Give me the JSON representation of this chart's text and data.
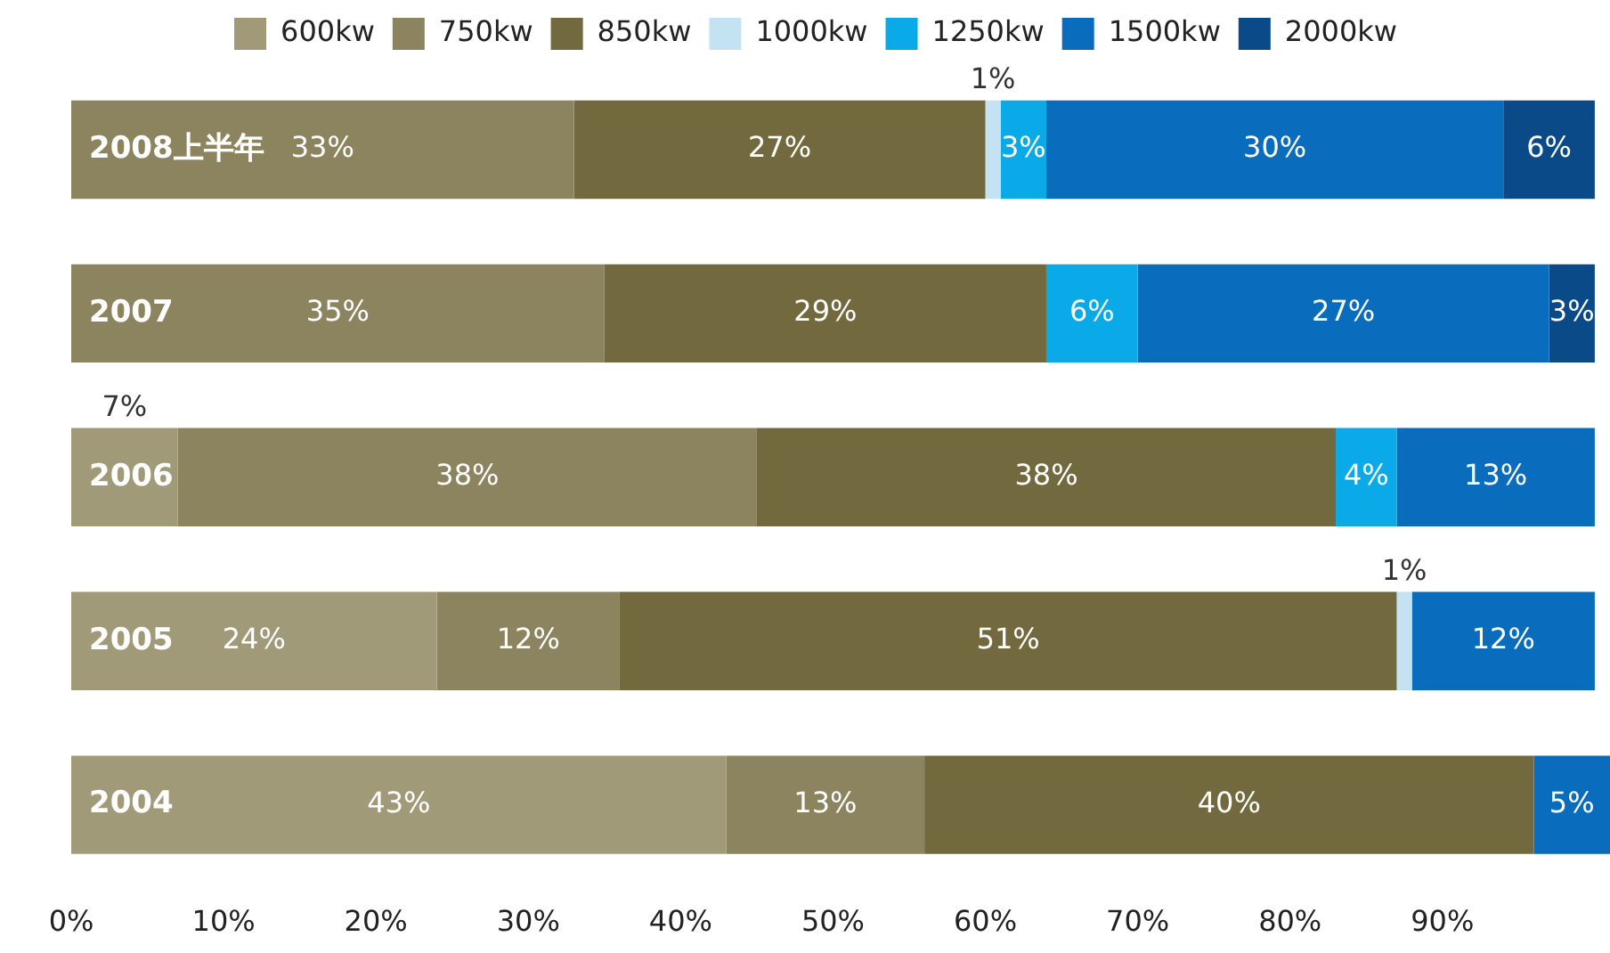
{
  "chart_data": {
    "type": "bar",
    "orientation": "horizontal",
    "stacked": true,
    "categories": [
      "2008上半年",
      "2007",
      "2006",
      "2005",
      "2004"
    ],
    "series": [
      {
        "name": "600kw",
        "color": "#a09a78",
        "values": [
          null,
          null,
          7,
          24,
          43
        ],
        "value_labels": [
          null,
          null,
          "7%",
          "24%",
          "43%"
        ]
      },
      {
        "name": "750kw",
        "color": "#8b845e",
        "values": [
          33,
          35,
          38,
          12,
          13
        ],
        "value_labels": [
          "33%",
          "35%",
          "38%",
          "12%",
          "13%"
        ]
      },
      {
        "name": "850kw",
        "color": "#726a3e",
        "values": [
          27,
          29,
          38,
          51,
          40
        ],
        "value_labels": [
          "27%",
          "29%",
          "38%",
          "51%",
          "40%"
        ]
      },
      {
        "name": "1000kw",
        "color": "#c3e2f2",
        "values": [
          1,
          null,
          null,
          1,
          null
        ],
        "value_labels": [
          "1%",
          null,
          null,
          "1%",
          null
        ]
      },
      {
        "name": "1250kw",
        "color": "#0aaae8",
        "values": [
          3,
          6,
          4,
          null,
          null
        ],
        "value_labels": [
          "3%",
          "6%",
          "4%",
          null,
          null
        ]
      },
      {
        "name": "1500kw",
        "color": "#0a6cbc",
        "values": [
          30,
          27,
          13,
          12,
          5
        ],
        "value_labels": [
          "30%",
          "27%",
          "13%",
          "12%",
          "5%"
        ]
      },
      {
        "name": "2000kw",
        "color": "#0a4a88",
        "values": [
          6,
          3,
          null,
          null,
          null
        ],
        "value_labels": [
          "6%",
          "3%",
          null,
          null,
          null
        ]
      }
    ],
    "xlim": [
      0,
      101
    ],
    "xticks": [
      {
        "value": 0,
        "label": "0%"
      },
      {
        "value": 10,
        "label": "10%"
      },
      {
        "value": 20,
        "label": "20%"
      },
      {
        "value": 30,
        "label": "30%"
      },
      {
        "value": 40,
        "label": "40%"
      },
      {
        "value": 50,
        "label": "50%"
      },
      {
        "value": 60,
        "label": "60%"
      },
      {
        "value": 70,
        "label": "70%"
      },
      {
        "value": 80,
        "label": "80%"
      },
      {
        "value": 90,
        "label": "90%"
      }
    ],
    "legend": "top",
    "grid": false
  }
}
